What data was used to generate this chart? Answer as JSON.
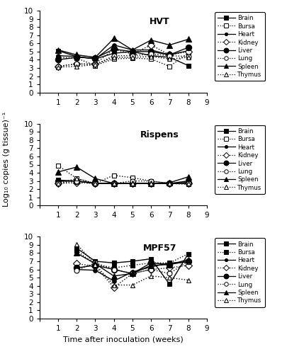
{
  "hvt": {
    "title": "HVT",
    "weeks": [
      1,
      2,
      3,
      4,
      5,
      6,
      7,
      8
    ],
    "Brain": [
      5.1,
      4.4,
      4.1,
      4.8,
      5.0,
      4.5,
      4.3,
      3.3
    ],
    "Bursa": [
      4.3,
      4.2,
      3.3,
      4.1,
      4.2,
      4.1,
      3.2,
      4.8
    ],
    "Heart": [
      4.5,
      4.4,
      4.1,
      5.8,
      5.2,
      5.2,
      4.6,
      5.1
    ],
    "Kidney": [
      3.2,
      3.5,
      3.5,
      5.3,
      4.7,
      5.8,
      4.6,
      5.0
    ],
    "Liver": [
      4.0,
      4.3,
      4.2,
      5.3,
      5.0,
      5.0,
      4.6,
      5.5
    ],
    "Lung": [
      3.2,
      3.5,
      3.4,
      4.5,
      4.5,
      4.7,
      4.5,
      4.4
    ],
    "Spleen": [
      5.2,
      4.6,
      4.3,
      6.6,
      5.2,
      6.4,
      5.8,
      6.5
    ],
    "Thymus": [
      3.1,
      3.2,
      3.4,
      4.3,
      4.3,
      4.4,
      4.1,
      4.3
    ]
  },
  "rispens": {
    "title": "Rispens",
    "weeks": [
      1,
      2,
      3,
      4,
      5,
      6,
      7,
      8
    ],
    "Brain": [
      3.1,
      3.0,
      2.7,
      2.7,
      2.7,
      2.7,
      2.7,
      3.0
    ],
    "Bursa": [
      4.9,
      3.3,
      2.7,
      3.7,
      3.4,
      3.0,
      2.7,
      2.6
    ],
    "Heart": [
      3.0,
      3.0,
      2.7,
      2.7,
      2.7,
      2.7,
      2.7,
      2.8
    ],
    "Kidney": [
      2.7,
      2.8,
      2.7,
      2.7,
      2.7,
      2.7,
      2.7,
      2.7
    ],
    "Liver": [
      3.0,
      3.0,
      2.7,
      2.7,
      2.7,
      2.7,
      2.7,
      2.8
    ],
    "Lung": [
      2.7,
      3.0,
      2.7,
      2.7,
      3.0,
      3.0,
      2.7,
      2.7
    ],
    "Spleen": [
      4.1,
      4.7,
      3.3,
      2.7,
      2.7,
      2.7,
      2.8,
      3.5
    ],
    "Thymus": [
      2.7,
      3.3,
      2.7,
      2.7,
      2.7,
      2.7,
      2.7,
      2.7
    ]
  },
  "mpf57": {
    "title": "MPF57",
    "weeks": [
      2,
      3,
      4,
      5,
      6,
      7,
      8
    ],
    "Brain": [
      8.6,
      7.0,
      6.8,
      7.0,
      7.3,
      4.2,
      7.9
    ],
    "Bursa": [
      8.3,
      6.6,
      6.2,
      6.5,
      6.8,
      6.8,
      7.9
    ],
    "Heart": [
      6.0,
      5.9,
      4.6,
      5.7,
      6.3,
      6.8,
      6.9
    ],
    "Kidney": [
      6.7,
      6.4,
      3.8,
      5.5,
      6.0,
      6.2,
      6.5
    ],
    "Liver": [
      6.2,
      6.5,
      6.0,
      5.5,
      6.8,
      6.6,
      7.0
    ],
    "Lung": [
      5.9,
      6.8,
      6.0,
      5.5,
      6.0,
      5.5,
      7.0
    ],
    "Spleen": [
      8.0,
      6.7,
      5.2,
      5.5,
      6.5,
      6.6,
      7.2
    ],
    "Thymus": [
      9.1,
      6.6,
      4.1,
      4.1,
      5.2,
      5.0,
      4.7
    ]
  },
  "organs": [
    "Brain",
    "Bursa",
    "Heart",
    "Kidney",
    "Liver",
    "Lung",
    "Spleen",
    "Thymus"
  ],
  "styles": {
    "Brain": {
      "linestyle": "-",
      "marker": "s",
      "filled": true,
      "markersize": 5
    },
    "Bursa": {
      "linestyle": ":",
      "marker": "s",
      "filled": false,
      "markersize": 5
    },
    "Heart": {
      "linestyle": "-",
      "marker": "o",
      "filled": true,
      "markersize": 4
    },
    "Kidney": {
      "linestyle": ":",
      "marker": "D",
      "filled": false,
      "markersize": 5
    },
    "Liver": {
      "linestyle": "-",
      "marker": "o",
      "filled": true,
      "markersize": 6
    },
    "Lung": {
      "linestyle": ":",
      "marker": "o",
      "filled": false,
      "markersize": 5
    },
    "Spleen": {
      "linestyle": "-",
      "marker": "^",
      "filled": true,
      "markersize": 6
    },
    "Thymus": {
      "linestyle": ":",
      "marker": "^",
      "filled": false,
      "markersize": 5
    }
  },
  "mpf57_styles": {
    "Brain": {
      "linestyle": "-",
      "marker": "s",
      "filled": true,
      "markersize": 5
    },
    "Bursa": {
      "linestyle": ":",
      "marker": "s",
      "filled": true,
      "markersize": 5
    },
    "Heart": {
      "linestyle": "-",
      "marker": "o",
      "filled": true,
      "markersize": 4
    },
    "Kidney": {
      "linestyle": ":",
      "marker": "D",
      "filled": false,
      "markersize": 5
    },
    "Liver": {
      "linestyle": "-",
      "marker": "o",
      "filled": true,
      "markersize": 6
    },
    "Lung": {
      "linestyle": ":",
      "marker": "o",
      "filled": false,
      "markersize": 5
    },
    "Spleen": {
      "linestyle": "-",
      "marker": "^",
      "filled": true,
      "markersize": 6
    },
    "Thymus": {
      "linestyle": ":",
      "marker": "^",
      "filled": false,
      "markersize": 5
    }
  },
  "ylim": [
    0,
    10
  ],
  "xlim": [
    0,
    9
  ],
  "yticks": [
    0,
    1,
    2,
    3,
    4,
    5,
    6,
    7,
    8,
    9,
    10
  ],
  "xticks": [
    0,
    1,
    2,
    3,
    4,
    5,
    6,
    7,
    8,
    9
  ],
  "ylabel": "Log₁₀ copies (g tissue)⁻¹",
  "xlabel": "Time after inoculation (weeks)"
}
